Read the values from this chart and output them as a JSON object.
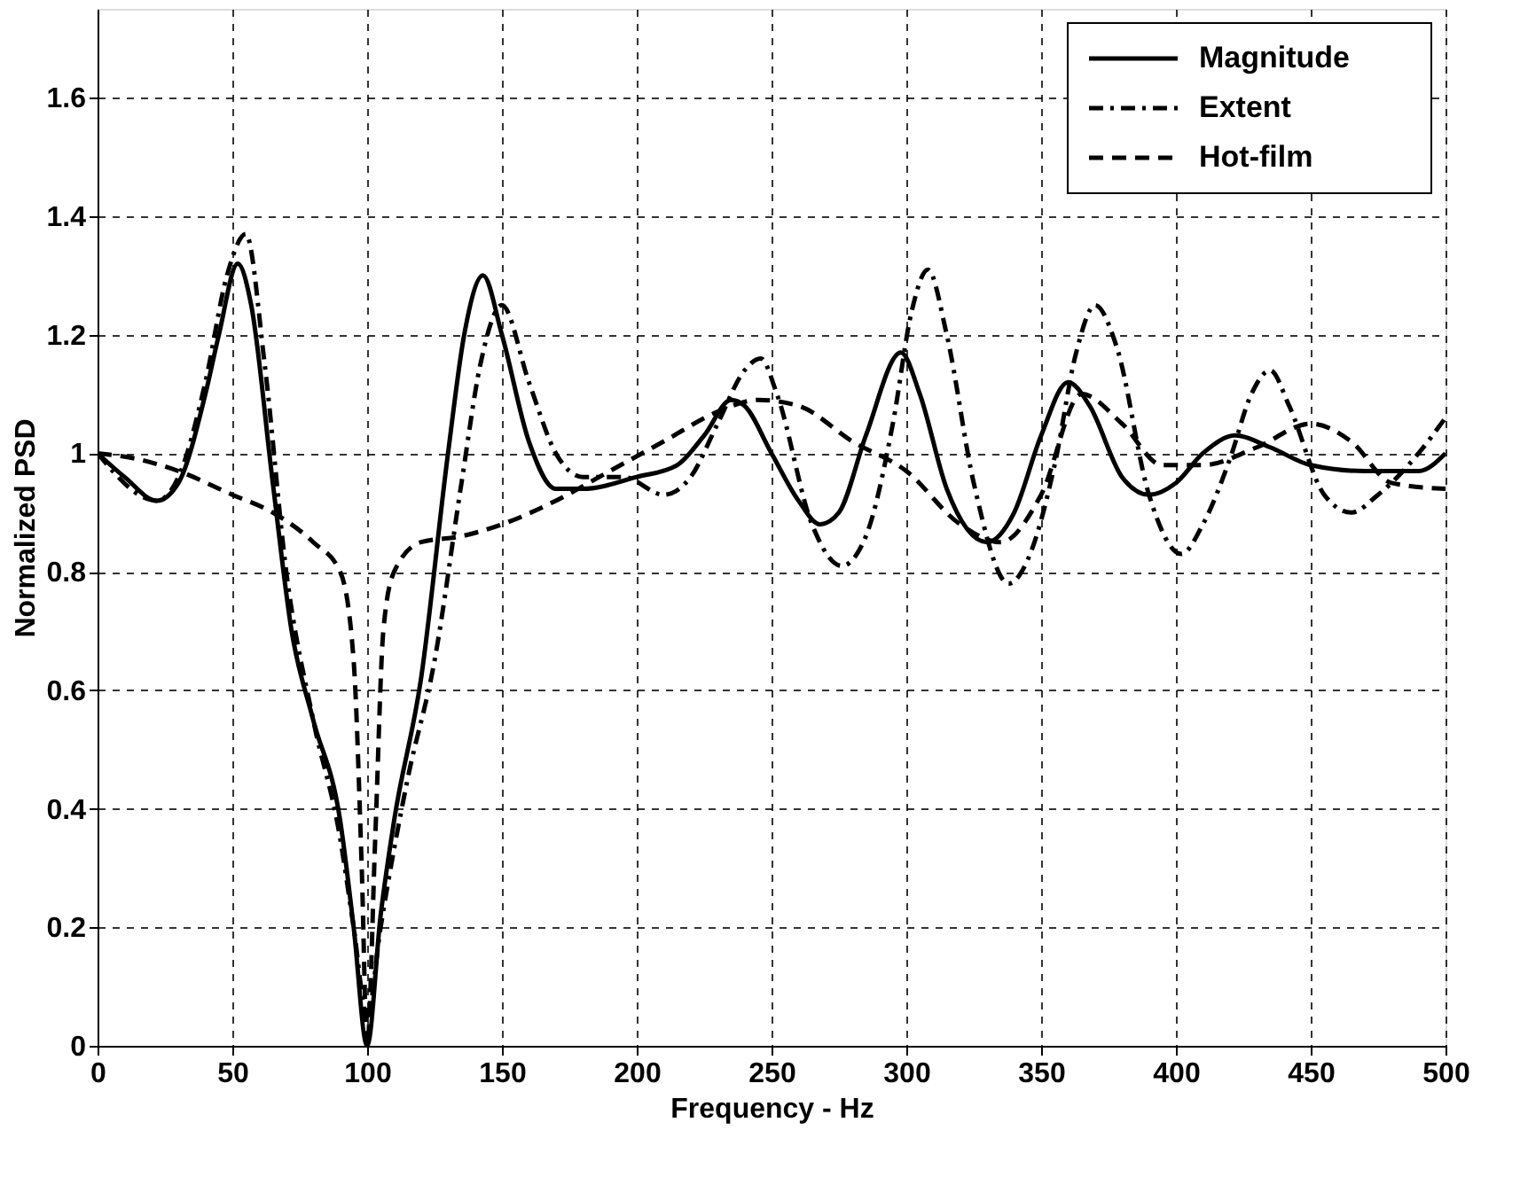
{
  "chart_data": {
    "type": "line",
    "xlabel": "Frequency - Hz",
    "ylabel": "Normalized PSD",
    "xlim": [
      0,
      500
    ],
    "xticks": [
      0,
      50,
      100,
      150,
      200,
      250,
      300,
      350,
      400,
      450,
      500
    ],
    "ylim": [
      0,
      1.75
    ],
    "yticks": [
      0,
      0.2,
      0.4,
      0.6,
      0.8,
      1,
      1.2,
      1.4,
      1.6
    ],
    "grid": true,
    "legend": "top right",
    "marker": "none",
    "series": [
      {
        "name": "Magnitude",
        "color": "#000000",
        "line_style": "solid",
        "x": [
          0,
          10,
          22,
          30,
          40,
          45,
          52,
          57,
          65,
          72,
          80,
          90,
          95,
          100,
          105,
          110,
          120,
          130,
          136,
          143,
          150,
          160,
          170,
          180,
          200,
          215,
          225,
          235,
          240,
          250,
          260,
          268,
          275,
          285,
          298,
          305,
          315,
          330,
          340,
          350,
          360,
          368,
          380,
          390,
          400,
          410,
          422,
          435,
          450,
          470,
          490,
          500
        ],
        "values": [
          1.0,
          0.96,
          0.92,
          0.95,
          1.1,
          1.2,
          1.32,
          1.25,
          0.95,
          0.7,
          0.55,
          0.38,
          0.2,
          0.0,
          0.22,
          0.38,
          0.62,
          1.0,
          1.2,
          1.3,
          1.2,
          1.02,
          0.94,
          0.94,
          0.96,
          0.98,
          1.03,
          1.09,
          1.08,
          1.0,
          0.92,
          0.88,
          0.9,
          1.03,
          1.17,
          1.1,
          0.94,
          0.85,
          0.9,
          1.03,
          1.12,
          1.08,
          0.96,
          0.93,
          0.95,
          1.0,
          1.03,
          1.01,
          0.98,
          0.97,
          0.97,
          1.0
        ]
      },
      {
        "name": "Extent",
        "color": "#000000",
        "line_style": "dashdot",
        "x": [
          0,
          22,
          30,
          40,
          48,
          55,
          62,
          70,
          80,
          90,
          95,
          100,
          105,
          115,
          125,
          135,
          142,
          150,
          160,
          170,
          180,
          195,
          210,
          220,
          230,
          240,
          246,
          252,
          265,
          276,
          285,
          295,
          302,
          308,
          315,
          325,
          338,
          345,
          355,
          363,
          370,
          378,
          390,
          402,
          410,
          420,
          428,
          435,
          442,
          455,
          465,
          475,
          490,
          500
        ],
        "values": [
          1.0,
          0.92,
          0.96,
          1.12,
          1.3,
          1.37,
          1.15,
          0.8,
          0.55,
          0.35,
          0.2,
          0.05,
          0.2,
          0.45,
          0.65,
          0.95,
          1.15,
          1.25,
          1.12,
          1.0,
          0.96,
          0.96,
          0.93,
          0.96,
          1.05,
          1.14,
          1.16,
          1.1,
          0.88,
          0.81,
          0.86,
          1.05,
          1.24,
          1.31,
          1.2,
          0.95,
          0.78,
          0.82,
          0.98,
          1.17,
          1.25,
          1.18,
          0.93,
          0.83,
          0.88,
          0.99,
          1.1,
          1.14,
          1.08,
          0.93,
          0.9,
          0.93,
          1.0,
          1.06
        ]
      },
      {
        "name": "Hot-film",
        "color": "#000000",
        "line_style": "dashed",
        "x": [
          0,
          15,
          30,
          50,
          65,
          80,
          90,
          95,
          98,
          100,
          103,
          106,
          110,
          120,
          135,
          150,
          170,
          190,
          210,
          230,
          245,
          260,
          280,
          300,
          320,
          335,
          350,
          365,
          380,
          395,
          410,
          430,
          450,
          465,
          480,
          500
        ],
        "values": [
          1.0,
          0.99,
          0.97,
          0.93,
          0.9,
          0.85,
          0.8,
          0.65,
          0.3,
          0.0,
          0.35,
          0.7,
          0.8,
          0.85,
          0.86,
          0.88,
          0.92,
          0.97,
          1.02,
          1.07,
          1.09,
          1.08,
          1.02,
          0.97,
          0.88,
          0.85,
          0.93,
          1.1,
          1.05,
          0.98,
          0.98,
          1.01,
          1.05,
          1.02,
          0.95,
          0.94
        ]
      }
    ]
  }
}
